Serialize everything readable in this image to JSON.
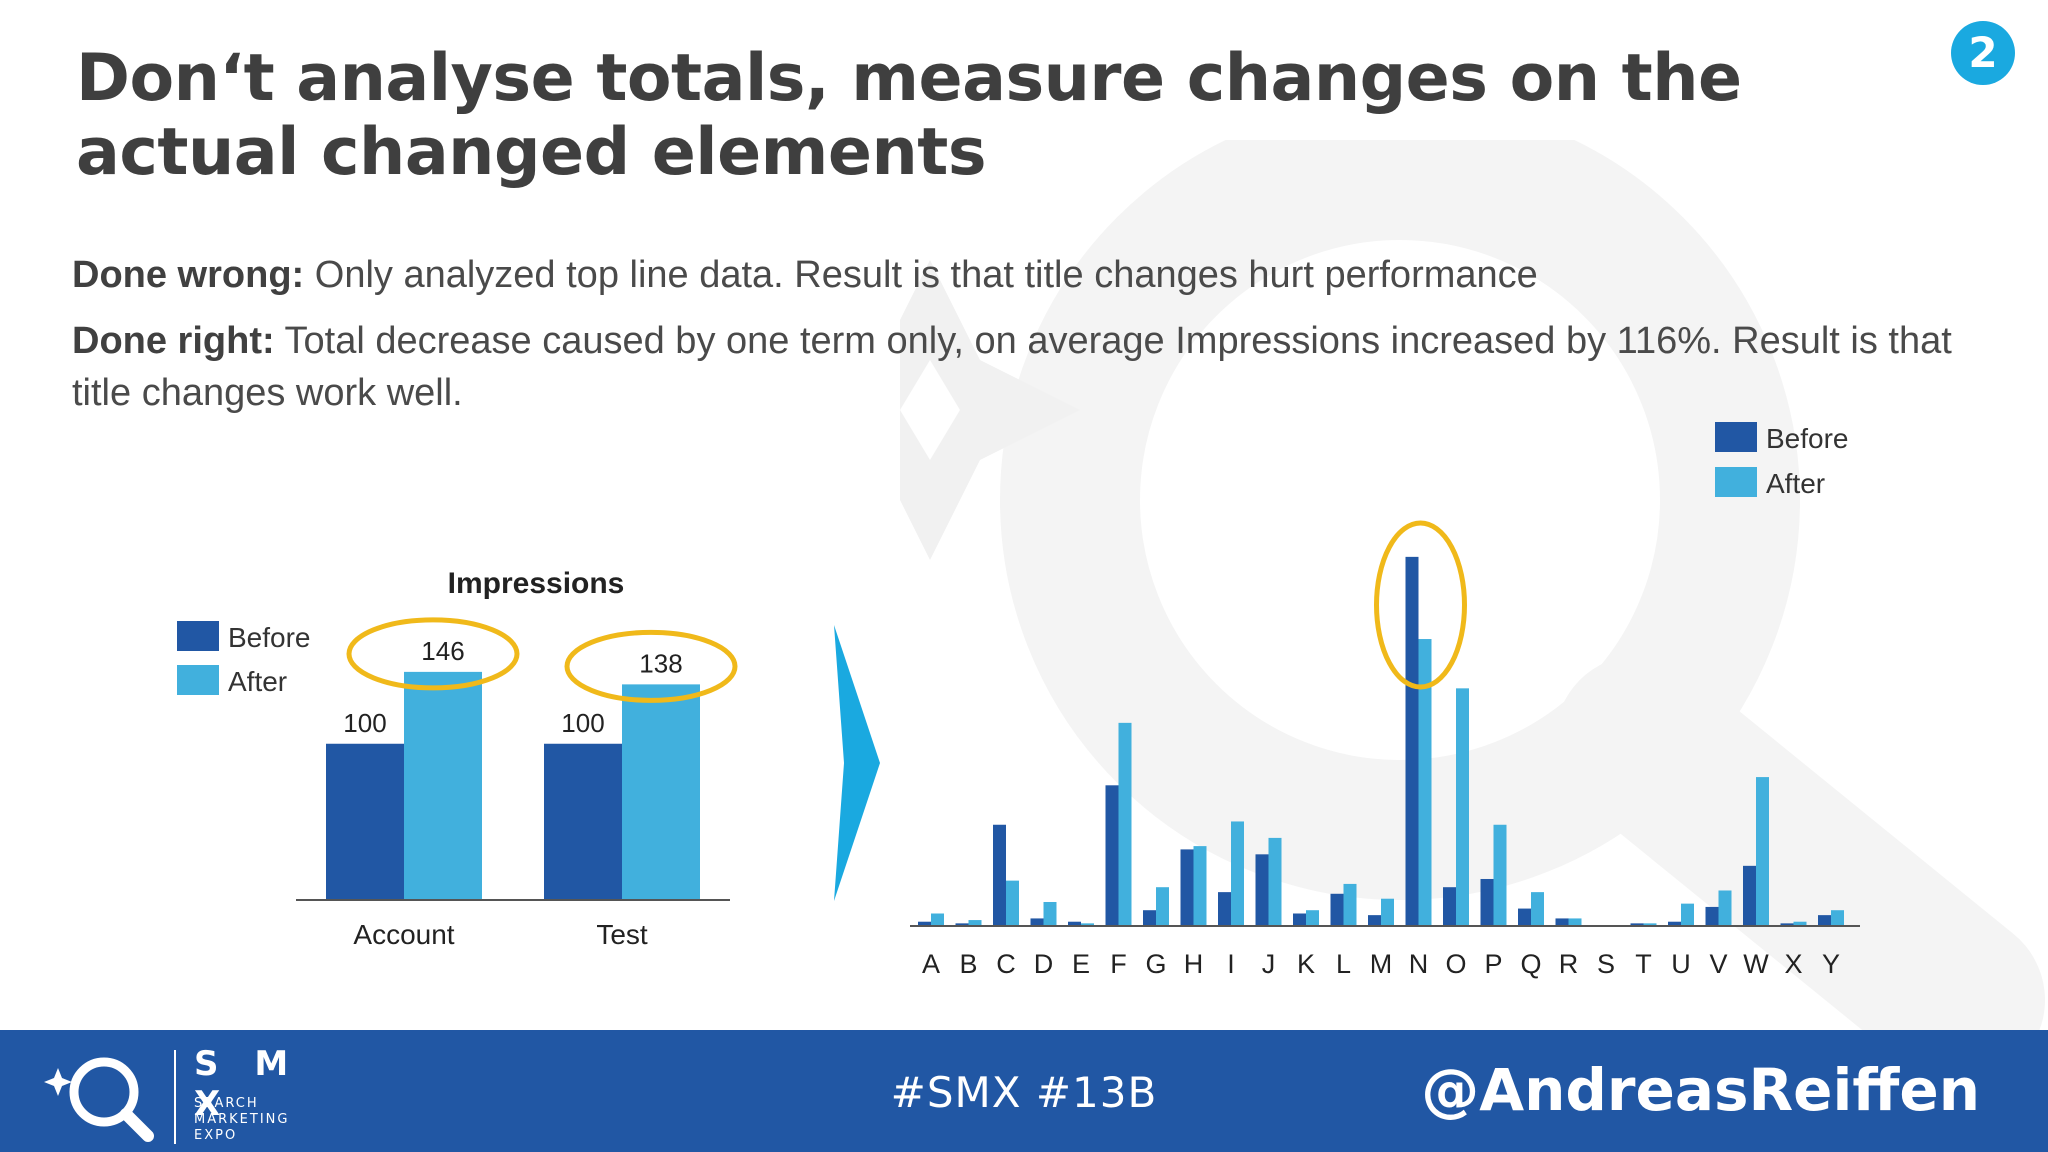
{
  "slide": {
    "title": "Don‘t analyse totals, measure changes on the actual changed elements",
    "badge": "2",
    "done_wrong_label": "Done wrong:",
    "done_wrong_text": " Only analyzed top line data. Result is that title changes hurt performance",
    "done_right_label": "Done right:",
    "done_right_text": " Total decrease caused by one term only, on average Impressions increased by 116%. Result is that title changes work well."
  },
  "colors": {
    "before": "#2157a4",
    "after": "#41b0dd",
    "highlight": "#f0b91a",
    "arrow": "#1aa9e0",
    "footer": "#2157a4"
  },
  "chart_data": [
    {
      "type": "bar",
      "title": "Impressions",
      "categories": [
        "Account",
        "Test"
      ],
      "series": [
        {
          "name": "Before",
          "values": [
            100,
            100
          ]
        },
        {
          "name": "After",
          "values": [
            146,
            138
          ]
        }
      ],
      "data_labels": [
        [
          "100",
          "146"
        ],
        [
          "100",
          "138"
        ]
      ],
      "ylim": [
        0,
        160
      ],
      "legend": "top-left",
      "annotations": [
        "circle around 146",
        "circle around 138"
      ]
    },
    {
      "type": "bar",
      "categories": [
        "A",
        "B",
        "C",
        "D",
        "E",
        "F",
        "G",
        "H",
        "I",
        "J",
        "K",
        "L",
        "M",
        "N",
        "O",
        "P",
        "Q",
        "R",
        "S",
        "T",
        "U",
        "V",
        "W",
        "X",
        "Y"
      ],
      "series": [
        {
          "name": "Before",
          "values": [
            2,
            1,
            61,
            4,
            2,
            85,
            9,
            46,
            20,
            43,
            7,
            19,
            6,
            224,
            23,
            28,
            10,
            4,
            0,
            1,
            2,
            11,
            36,
            1,
            6
          ]
        },
        {
          "name": "After",
          "values": [
            7,
            3,
            27,
            14,
            1,
            123,
            23,
            48,
            63,
            53,
            9,
            25,
            16,
            174,
            144,
            61,
            20,
            4,
            0,
            1,
            13,
            21,
            90,
            2,
            9
          ]
        }
      ],
      "ylim": [
        0,
        230
      ],
      "legend": "top-right",
      "annotations": [
        "circle around category N"
      ]
    }
  ],
  "footer": {
    "logo_text": "S M X",
    "logo_sub": [
      "SEARCH",
      "MARKETING",
      "EXPO"
    ],
    "hashtag": "#SMX #13B",
    "handle": "@AndreasReiffen"
  }
}
